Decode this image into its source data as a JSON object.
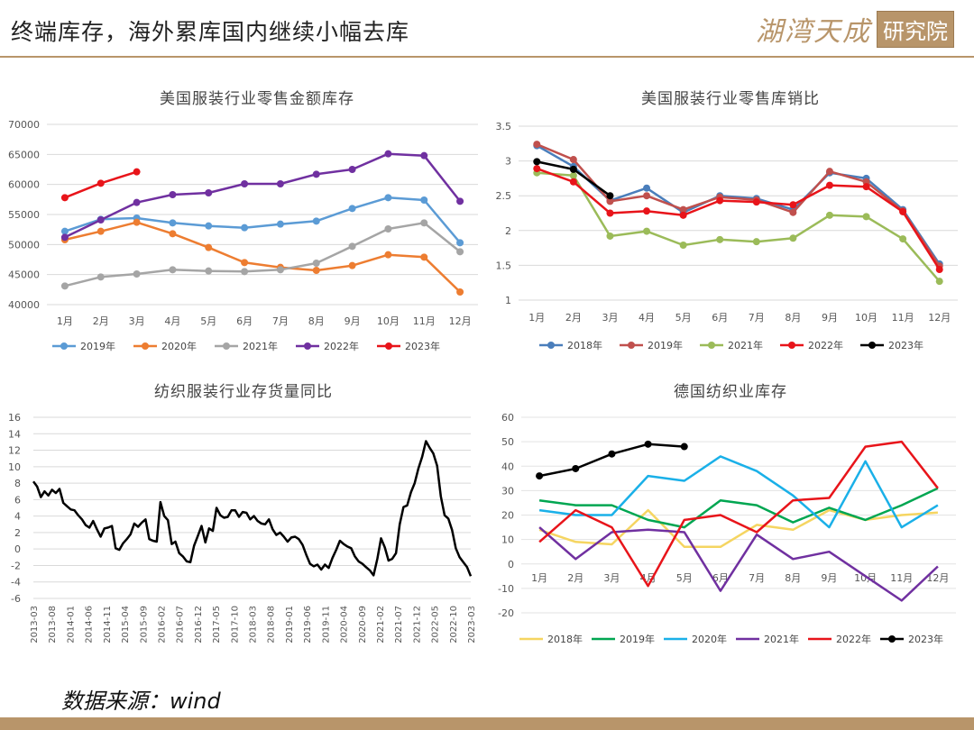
{
  "header": {
    "title": "终端库存，海外累库国内继续小幅去库",
    "logo_script": "湖湾天成",
    "logo_box": "研究院"
  },
  "source": "数据来源：wind",
  "colors": {
    "accent": "#b8956a"
  },
  "chart_data": [
    {
      "type": "line",
      "title": "美国服装行业零售金额库存",
      "categories": [
        "1月",
        "2月",
        "3月",
        "4月",
        "5月",
        "6月",
        "7月",
        "8月",
        "9月",
        "10月",
        "11月",
        "12月"
      ],
      "ylim": [
        40000,
        70000
      ],
      "yticks": [
        "40000",
        "45000",
        "50000",
        "55000",
        "60000",
        "65000",
        "70000"
      ],
      "legend_position": "bottom",
      "series": [
        {
          "name": "2019年",
          "color": "#5b9bd5",
          "values": [
            52200,
            54200,
            54400,
            53600,
            53100,
            52800,
            53400,
            53900,
            56000,
            57800,
            57400,
            50300
          ]
        },
        {
          "name": "2020年",
          "color": "#ed7d31",
          "values": [
            50800,
            52200,
            53700,
            51800,
            49500,
            47000,
            46200,
            45700,
            46500,
            48300,
            47900,
            42100
          ]
        },
        {
          "name": "2021年",
          "color": "#a5a5a5",
          "values": [
            43100,
            44600,
            45100,
            45800,
            45600,
            45500,
            45800,
            46900,
            49700,
            52600,
            53600,
            48800
          ]
        },
        {
          "name": "2022年",
          "color": "#7030a0",
          "values": [
            51200,
            54100,
            57000,
            58300,
            58600,
            60100,
            60100,
            61700,
            62500,
            65100,
            64800,
            57200
          ]
        },
        {
          "name": "2023年",
          "color": "#e8141a",
          "values": [
            57800,
            60200,
            62100,
            null,
            null,
            null,
            null,
            null,
            null,
            null,
            null,
            null
          ]
        }
      ]
    },
    {
      "type": "line",
      "title": "美国服装行业零售库销比",
      "categories": [
        "1月",
        "2月",
        "3月",
        "4月",
        "5月",
        "6月",
        "7月",
        "8月",
        "9月",
        "10月",
        "11月",
        "12月"
      ],
      "ylim": [
        1,
        3.5
      ],
      "yticks": [
        "1",
        "1.5",
        "2",
        "2.5",
        "3",
        "3.5"
      ],
      "legend_position": "bottom",
      "series": [
        {
          "name": "2018年",
          "color": "#4a7ebb",
          "values": [
            3.22,
            2.92,
            2.43,
            2.61,
            2.26,
            2.5,
            2.46,
            2.3,
            2.83,
            2.75,
            2.3,
            1.52
          ]
        },
        {
          "name": "2019年",
          "color": "#c0504d",
          "values": [
            3.24,
            3.02,
            2.42,
            2.5,
            2.3,
            2.48,
            2.44,
            2.26,
            2.85,
            2.7,
            2.28,
            1.49
          ]
        },
        {
          "name": "2021年",
          "color": "#9bbb59",
          "values": [
            2.83,
            2.79,
            1.92,
            1.99,
            1.79,
            1.87,
            1.84,
            1.89,
            2.22,
            2.2,
            1.88,
            1.27
          ]
        },
        {
          "name": "2022年",
          "color": "#e8141a",
          "values": [
            2.89,
            2.7,
            2.25,
            2.28,
            2.22,
            2.43,
            2.41,
            2.37,
            2.65,
            2.63,
            2.27,
            1.44
          ]
        },
        {
          "name": "2023年",
          "color": "#000000",
          "values": [
            2.99,
            2.88,
            2.5,
            null,
            null,
            null,
            null,
            null,
            null,
            null,
            null,
            null
          ]
        }
      ]
    },
    {
      "type": "line",
      "title": "纺织服装行业存货量同比",
      "ylim": [
        -6,
        16
      ],
      "yticks": [
        "-6",
        "-4",
        "-2",
        "0",
        "2",
        "4",
        "6",
        "8",
        "10",
        "12",
        "14",
        "16"
      ],
      "xticks": [
        "2013-03",
        "2013-08",
        "2014-01",
        "2014-06",
        "2014-11",
        "2015-04",
        "2015-09",
        "2016-02",
        "2016-07",
        "2016-12",
        "2017-05",
        "2017-10",
        "2018-03",
        "2018-08",
        "2019-01",
        "2019-06",
        "2019-11",
        "2020-04",
        "2020-09",
        "2021-02",
        "2021-07",
        "2021-12",
        "2022-05",
        "2022-10",
        "2023-03"
      ],
      "series": [
        {
          "name": "",
          "color": "#000000",
          "values": [
            8.2,
            7.6,
            6.3,
            7.0,
            6.5,
            7.2,
            6.8,
            7.3,
            5.6,
            5.2,
            4.8,
            4.7,
            4.1,
            3.6,
            2.9,
            2.6,
            3.4,
            2.4,
            1.5,
            2.5,
            2.6,
            2.8,
            0.1,
            -0.1,
            0.7,
            1.2,
            1.8,
            3.1,
            2.7,
            3.2,
            3.6,
            1.2,
            1.0,
            0.9,
            5.7,
            4.0,
            3.5,
            0.6,
            0.9,
            -0.5,
            -0.9,
            -1.5,
            -1.6,
            0.4,
            1.6,
            2.8,
            0.8,
            2.5,
            2.2,
            5.0,
            4.1,
            3.8,
            3.9,
            4.7,
            4.7,
            3.9,
            4.5,
            4.4,
            3.6,
            4.0,
            3.4,
            3.1,
            3.0,
            3.6,
            2.4,
            1.7,
            2.0,
            1.5,
            0.9,
            1.4,
            1.5,
            1.2,
            0.5,
            -0.7,
            -1.8,
            -2.1,
            -1.9,
            -2.5,
            -1.9,
            -2.3,
            -1.1,
            -0.1,
            1.0,
            0.6,
            0.3,
            0.1,
            -0.9,
            -1.5,
            -1.8,
            -2.2,
            -2.6,
            -3.2,
            -1.2,
            1.3,
            0.2,
            -1.4,
            -1.2,
            -0.5,
            3.0,
            5.1,
            5.3,
            6.9,
            8.0,
            9.8,
            11.2,
            13.1,
            12.3,
            11.6,
            10.1,
            6.4,
            4.1,
            3.7,
            2.3,
            0.1,
            -1.0,
            -1.6,
            -2.2,
            -3.3
          ]
        }
      ]
    },
    {
      "type": "line",
      "title": "德国纺织业库存",
      "categories": [
        "1月",
        "2月",
        "3月",
        "4月",
        "5月",
        "6月",
        "7月",
        "8月",
        "9月",
        "10月",
        "11月",
        "12月"
      ],
      "ylim": [
        -20,
        60
      ],
      "yticks": [
        "-20",
        "-10",
        "0",
        "10",
        "20",
        "30",
        "40",
        "50",
        "60"
      ],
      "legend_position": "bottom",
      "series": [
        {
          "name": "2018年",
          "color": "#f5d561",
          "values": [
            14,
            9,
            8,
            22,
            7,
            7,
            16,
            14,
            22,
            18,
            20,
            21
          ]
        },
        {
          "name": "2019年",
          "color": "#00a651",
          "values": [
            26,
            24,
            24,
            18,
            15,
            26,
            24,
            17,
            23,
            18,
            24,
            31
          ]
        },
        {
          "name": "2020年",
          "color": "#1ab0e8",
          "values": [
            22,
            20,
            20,
            36,
            34,
            44,
            38,
            28,
            15,
            42,
            15,
            24
          ]
        },
        {
          "name": "2021年",
          "color": "#7030a0",
          "values": [
            15,
            2,
            13,
            14,
            13,
            -11,
            12,
            2,
            5,
            -5,
            -15,
            -1
          ]
        },
        {
          "name": "2022年",
          "color": "#e8141a",
          "values": [
            9,
            22,
            15,
            -9,
            18,
            20,
            13,
            26,
            27,
            48,
            50,
            31
          ]
        },
        {
          "name": "2023年",
          "color": "#000000",
          "values": [
            36,
            39,
            45,
            49,
            48,
            null,
            null,
            null,
            null,
            null,
            null,
            null
          ]
        }
      ]
    }
  ]
}
